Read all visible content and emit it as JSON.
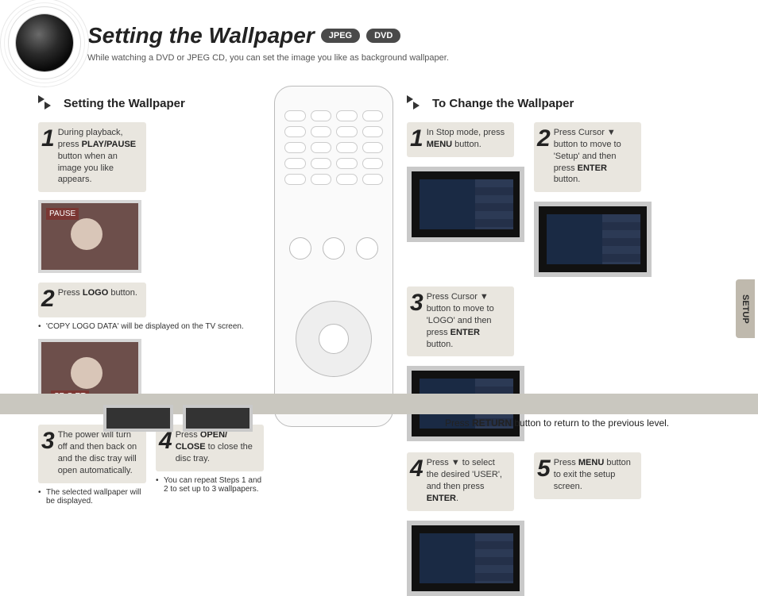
{
  "header": {
    "title": "Setting the Wallpaper",
    "badges": [
      "JPEG",
      "DVD"
    ],
    "subtitle": "While watching a DVD or JPEG CD, you can set the image you like as background wallpaper."
  },
  "left": {
    "heading": "Setting the Wallpaper",
    "steps": [
      {
        "n": "1",
        "html": "During playback, press <b>PLAY/PAUSE</b> button when an image you like appears."
      },
      {
        "n": "2",
        "html": "Press <b>LOGO</b> button."
      },
      {
        "n": "3",
        "html": "The power will turn off and then back on and the disc tray will open automatically."
      },
      {
        "n": "4",
        "html": "Press <b>OPEN/ CLOSE</b> to close the disc tray."
      }
    ],
    "note_logo": "'COPY LOGO DATA' will be displayed on the TV screen.",
    "note_step3": "The selected wallpaper will be displayed.",
    "note_step4": "You can repeat Steps 1 and 2 to set up to 3 wallpapers.",
    "thumb_tag_left": "PAUSE",
    "thumb_tag_right": "SP O RT"
  },
  "right": {
    "heading": "To Change the Wallpaper",
    "steps": [
      {
        "n": "1",
        "html": "In Stop mode, press <b>MENU</b> button."
      },
      {
        "n": "2",
        "html": "Press Cursor ▼ button to move to 'Setup' and then press <b>ENTER</b> button."
      },
      {
        "n": "3",
        "html": "Press Cursor ▼ button to move to 'LOGO' and then press <b>ENTER</b> button."
      },
      {
        "n": "4",
        "html": "Press ▼ to select the desired 'USER', and then press <b>ENTER</b>."
      },
      {
        "n": "5",
        "html": "Press <b>MENU</b> button to exit the setup screen."
      }
    ]
  },
  "tab": "SETUP",
  "footer": "Press <b>RETURN</b> button to return to the previous level.",
  "colors": {
    "step_bg": "#e9e6df",
    "badge_bg": "#4a4a4a",
    "footer_bg": "#c9c7bf",
    "tv_border": "#c9c9c9",
    "tv_screen": "#111111"
  }
}
